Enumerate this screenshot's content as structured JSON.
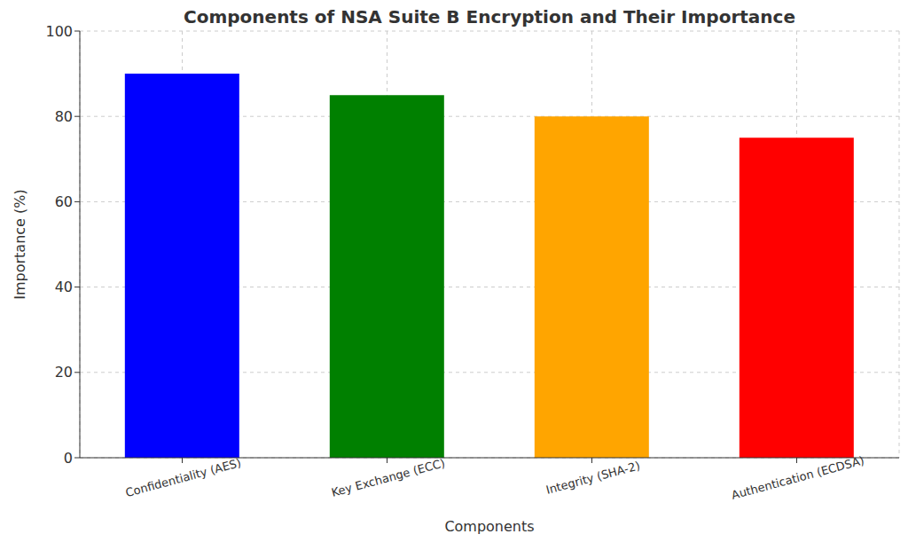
{
  "chart_data": {
    "type": "bar",
    "title": "Components of NSA Suite B Encryption and Their Importance",
    "x_label": "Components",
    "y_label": "Importance (%)",
    "categories": [
      "Confidentiality (AES)",
      "Key Exchange (ECC)",
      "Integrity (SHA-2)",
      "Authentication (ECDSA)"
    ],
    "values": [
      90,
      85,
      80,
      75
    ],
    "colors": [
      "#0000ff",
      "#008000",
      "#ffa500",
      "#ff0000"
    ],
    "ylim": [
      0,
      100
    ],
    "yticks": [
      0,
      20,
      40,
      60,
      80,
      100
    ],
    "grid": true
  }
}
